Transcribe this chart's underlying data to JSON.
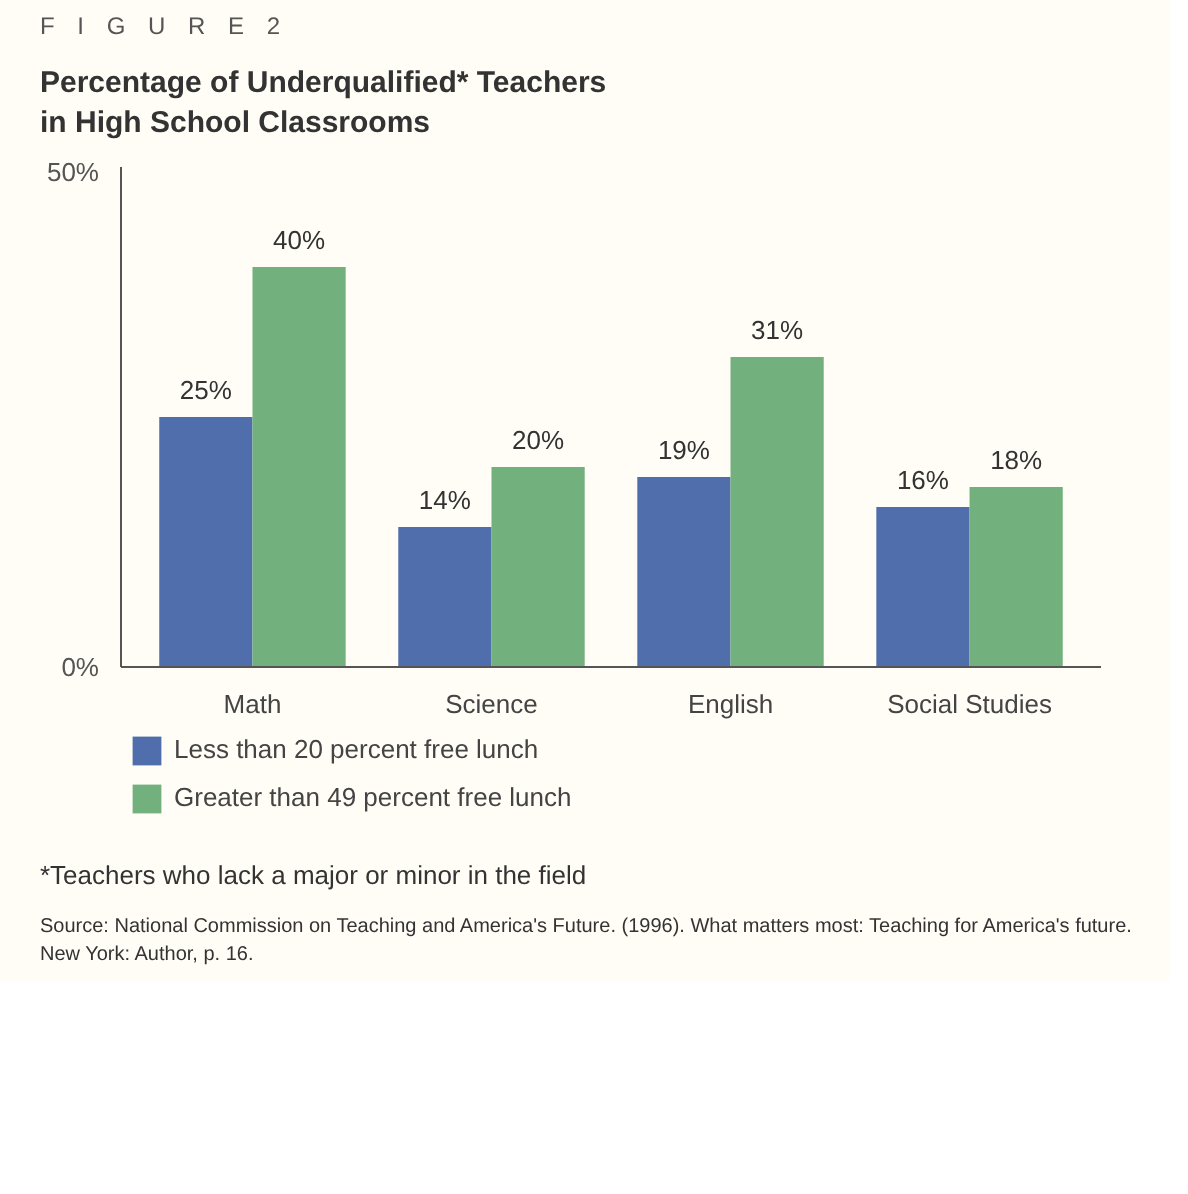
{
  "chart_data": {
    "type": "bar",
    "title": "Percentage of Underqualified* Teachers\nin High School Classrooms",
    "subtitle": "F I G U R E   2",
    "categories": [
      "Math",
      "Science",
      "English",
      "Social Studies"
    ],
    "series": [
      {
        "name": "Less than 20 percent free lunch",
        "color": "#4f6eab",
        "values": [
          25,
          14,
          19,
          16
        ],
        "value_labels": [
          "25%",
          "14%",
          "19%",
          "16%"
        ]
      },
      {
        "name": "Greater than 49 percent free lunch",
        "color": "#72b17e",
        "values": [
          40,
          20,
          31,
          18
        ],
        "value_labels": [
          "40%",
          "20%",
          "31%",
          "18%"
        ]
      }
    ],
    "ylim": [
      0,
      50
    ],
    "yticks": [
      {
        "value": 0,
        "label": "0%"
      },
      {
        "value": 50,
        "label": "50%"
      }
    ],
    "grid": false,
    "legend": "bottom",
    "annotations": [
      "*Teachers who lack a major or minor in the field",
      "Source: National Commission on Teaching and America's Future. (1996). What matters most: Teaching for America's future. New York: Author, p. 16."
    ]
  }
}
